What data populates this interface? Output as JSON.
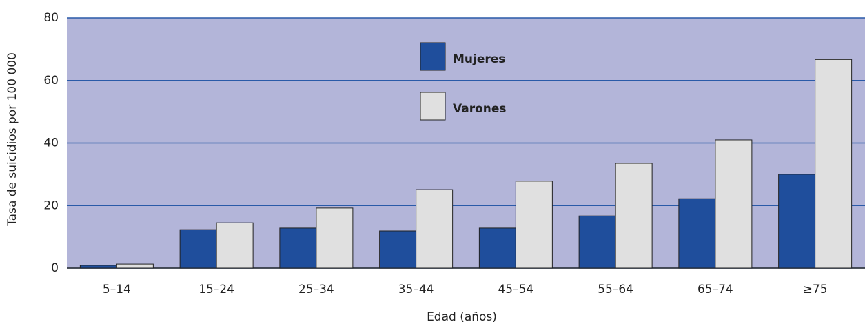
{
  "chart_data": {
    "type": "bar",
    "xlabel": "Edad (años)",
    "ylabel": "Tasa de suicidios por 100 000",
    "categories": [
      "5–14",
      "15–24",
      "25–34",
      "35–44",
      "45–54",
      "55–64",
      "65–74",
      "≥75"
    ],
    "series": [
      {
        "name": "Mujeres",
        "color": "#1f4e9c",
        "values": [
          0.9,
          12.3,
          12.8,
          11.9,
          12.8,
          16.7,
          22.2,
          30.0
        ]
      },
      {
        "name": "Varones",
        "color": "#e0e0e0",
        "values": [
          1.3,
          14.5,
          19.2,
          25.1,
          27.8,
          33.5,
          41.0,
          66.7
        ]
      }
    ],
    "ylim": [
      0,
      80
    ],
    "yticks": [
      0,
      20,
      40,
      60,
      80
    ],
    "grid": true,
    "legend": "top"
  }
}
